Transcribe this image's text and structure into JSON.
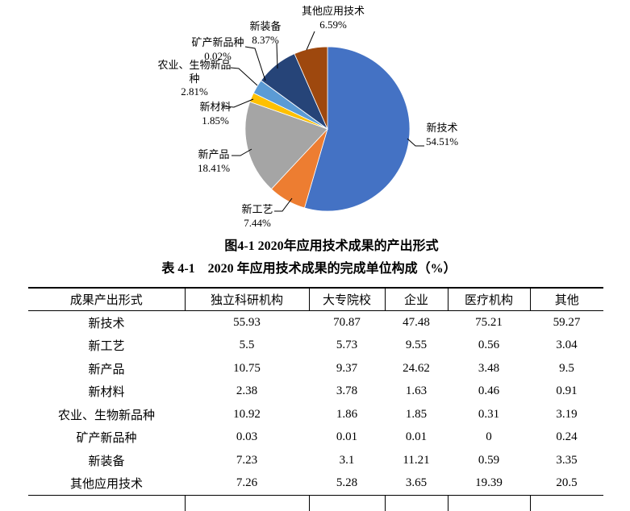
{
  "figure": {
    "caption": "图4-1 2020年应用技术成果的产出形式"
  },
  "chart_data": {
    "type": "pie",
    "title": "2020年应用技术成果的产出形式",
    "start_angle_deg": 0,
    "direction": "clockwise-from-top",
    "legend_position": "none",
    "slices": [
      {
        "label": "新技术",
        "value": 54.51,
        "pct_label": "54.51%",
        "color": "#4472C4"
      },
      {
        "label": "新工艺",
        "value": 7.44,
        "pct_label": "7.44%",
        "color": "#ED7D31"
      },
      {
        "label": "新产品",
        "value": 18.41,
        "pct_label": "18.41%",
        "color": "#A5A5A5"
      },
      {
        "label": "新材料",
        "value": 1.85,
        "pct_label": "1.85%",
        "color": "#FFC000"
      },
      {
        "label": "农业、生物新品种",
        "value": 2.81,
        "pct_label": "2.81%",
        "color": "#5B9BD5"
      },
      {
        "label": "矿产新品种",
        "value": 0.02,
        "pct_label": "0.02%",
        "color": "#70AD47"
      },
      {
        "label": "新装备",
        "value": 8.37,
        "pct_label": "8.37%",
        "color": "#264478"
      },
      {
        "label": "其他应用技术",
        "value": 6.59,
        "pct_label": "6.59%",
        "color": "#9E480E"
      }
    ]
  },
  "table": {
    "title": "表 4-1　2020 年应用技术成果的完成单位构成（%）",
    "columns": [
      "成果产出形式",
      "独立科研机构",
      "大专院校",
      "企业",
      "医疗机构",
      "其他"
    ],
    "rows": [
      [
        "新技术",
        "55.93",
        "70.87",
        "47.48",
        "75.21",
        "59.27"
      ],
      [
        "新工艺",
        "5.5",
        "5.73",
        "9.55",
        "0.56",
        "3.04"
      ],
      [
        "新产品",
        "10.75",
        "9.37",
        "24.62",
        "3.48",
        "9.5"
      ],
      [
        "新材料",
        "2.38",
        "3.78",
        "1.63",
        "0.46",
        "0.91"
      ],
      [
        "农业、生物新品种",
        "10.92",
        "1.86",
        "1.85",
        "0.31",
        "3.19"
      ],
      [
        "矿产新品种",
        "0.03",
        "0.01",
        "0.01",
        "0",
        "0.24"
      ],
      [
        "新装备",
        "7.23",
        "3.1",
        "11.21",
        "0.59",
        "3.35"
      ],
      [
        "其他应用技术",
        "7.26",
        "5.28",
        "3.65",
        "19.39",
        "20.5"
      ]
    ]
  }
}
